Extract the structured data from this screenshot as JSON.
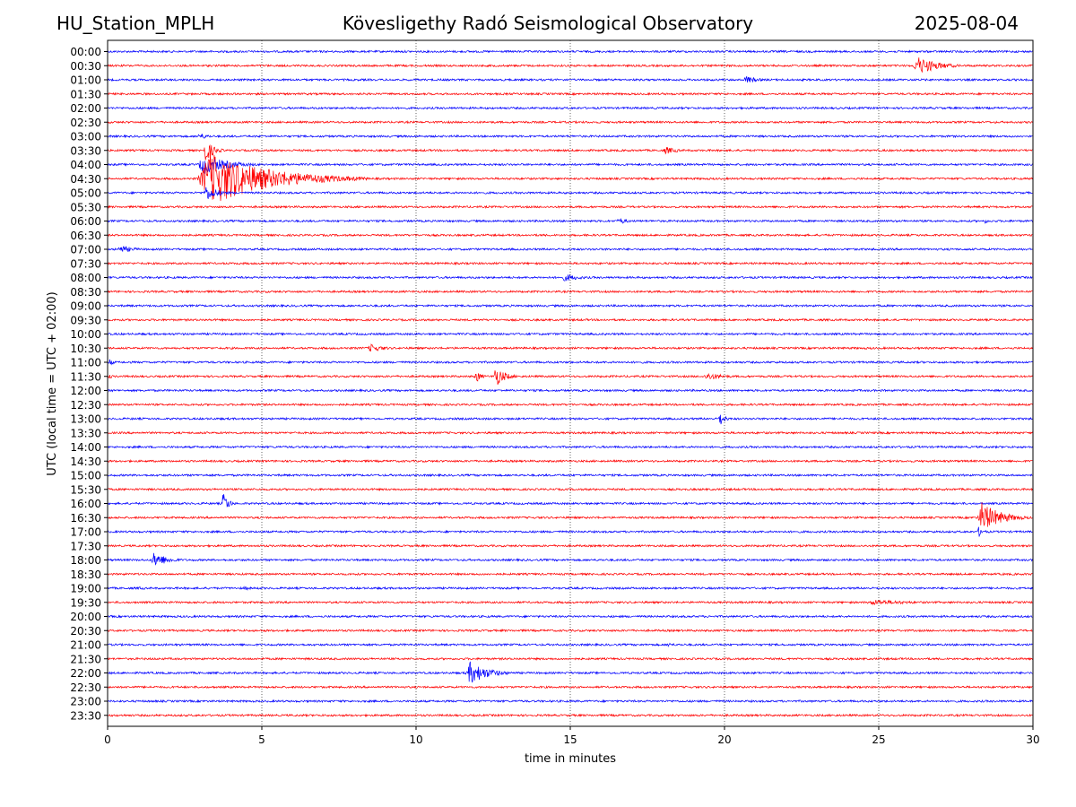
{
  "header": {
    "station": "HU_Station_MPLH",
    "observatory": "Kövesligethy Radó Seismological Observatory",
    "date": "2025-08-04"
  },
  "chart_data": {
    "type": "line",
    "title": "Kövesligethy Radó Seismological Observatory",
    "xlabel": "time in minutes",
    "ylabel": "UTC (local time = UTC + 02:00)",
    "xlim": [
      0,
      30
    ],
    "xticks": [
      0,
      5,
      10,
      15,
      20,
      25,
      30
    ],
    "grid": "vertical dotted lines at x ticks",
    "rows": [
      "00:00",
      "00:30",
      "01:00",
      "01:30",
      "02:00",
      "02:30",
      "03:00",
      "03:30",
      "04:00",
      "04:30",
      "05:00",
      "05:30",
      "06:00",
      "06:30",
      "07:00",
      "07:30",
      "08:00",
      "08:30",
      "09:00",
      "09:30",
      "10:00",
      "10:30",
      "11:00",
      "11:30",
      "12:00",
      "12:30",
      "13:00",
      "13:30",
      "14:00",
      "14:30",
      "15:00",
      "15:30",
      "16:00",
      "16:30",
      "17:00",
      "17:30",
      "18:00",
      "18:30",
      "19:00",
      "19:30",
      "20:00",
      "20:30",
      "21:00",
      "21:30",
      "22:00",
      "22:30",
      "23:00",
      "23:30"
    ],
    "trace_colors": [
      "#0000ff",
      "#ff0000"
    ],
    "events": [
      {
        "row": "00:30",
        "start_min": 26.1,
        "duration_min": 2.0,
        "amplitude_rows": 1.2
      },
      {
        "row": "01:00",
        "start_min": 20.6,
        "duration_min": 1.2,
        "amplitude_rows": 0.5
      },
      {
        "row": "03:00",
        "start_min": 2.9,
        "duration_min": 1.0,
        "amplitude_rows": 0.45
      },
      {
        "row": "03:30",
        "start_min": 3.1,
        "duration_min": 0.8,
        "amplitude_rows": 1.5
      },
      {
        "row": "03:30",
        "start_min": 18.0,
        "duration_min": 1.2,
        "amplitude_rows": 0.5
      },
      {
        "row": "04:00",
        "start_min": 2.9,
        "duration_min": 2.5,
        "amplitude_rows": 1.2
      },
      {
        "row": "04:30",
        "start_min": 2.9,
        "duration_min": 5.5,
        "amplitude_rows": 3.5
      },
      {
        "row": "05:00",
        "start_min": 3.1,
        "duration_min": 1.2,
        "amplitude_rows": 1.0
      },
      {
        "row": "06:00",
        "start_min": 16.5,
        "duration_min": 1.0,
        "amplitude_rows": 0.45
      },
      {
        "row": "06:00",
        "start_min": 28.4,
        "duration_min": 0.6,
        "amplitude_rows": 0.3
      },
      {
        "row": "07:00",
        "start_min": 0.3,
        "duration_min": 1.5,
        "amplitude_rows": 0.5
      },
      {
        "row": "08:00",
        "start_min": 14.7,
        "duration_min": 1.6,
        "amplitude_rows": 0.5
      },
      {
        "row": "10:30",
        "start_min": 8.4,
        "duration_min": 1.4,
        "amplitude_rows": 0.55
      },
      {
        "row": "11:00",
        "start_min": 0.0,
        "duration_min": 0.5,
        "amplitude_rows": 0.5
      },
      {
        "row": "11:30",
        "start_min": 0.0,
        "duration_min": 0.4,
        "amplitude_rows": 0.4
      },
      {
        "row": "11:30",
        "start_min": 11.9,
        "duration_min": 0.5,
        "amplitude_rows": 0.9
      },
      {
        "row": "11:30",
        "start_min": 12.5,
        "duration_min": 0.9,
        "amplitude_rows": 1.4
      },
      {
        "row": "11:30",
        "start_min": 19.3,
        "duration_min": 1.8,
        "amplitude_rows": 0.5
      },
      {
        "row": "13:00",
        "start_min": 19.8,
        "duration_min": 0.5,
        "amplitude_rows": 1.0
      },
      {
        "row": "16:00",
        "start_min": 3.7,
        "duration_min": 0.5,
        "amplitude_rows": 1.6
      },
      {
        "row": "16:30",
        "start_min": 28.2,
        "duration_min": 1.8,
        "amplitude_rows": 2.0
      },
      {
        "row": "17:00",
        "start_min": 28.2,
        "duration_min": 0.5,
        "amplitude_rows": 0.7
      },
      {
        "row": "18:00",
        "start_min": 1.4,
        "duration_min": 1.4,
        "amplitude_rows": 1.0
      },
      {
        "row": "19:00",
        "start_min": 1.0,
        "duration_min": 0.6,
        "amplitude_rows": 0.25
      },
      {
        "row": "19:00",
        "start_min": 4.4,
        "duration_min": 0.7,
        "amplitude_rows": 0.3
      },
      {
        "row": "19:30",
        "start_min": 24.5,
        "duration_min": 4.5,
        "amplitude_rows": 0.35
      },
      {
        "row": "21:00",
        "start_min": 18.1,
        "duration_min": 0.8,
        "amplitude_rows": 0.3
      },
      {
        "row": "22:00",
        "start_min": 11.6,
        "duration_min": 1.8,
        "amplitude_rows": 1.5
      }
    ]
  }
}
